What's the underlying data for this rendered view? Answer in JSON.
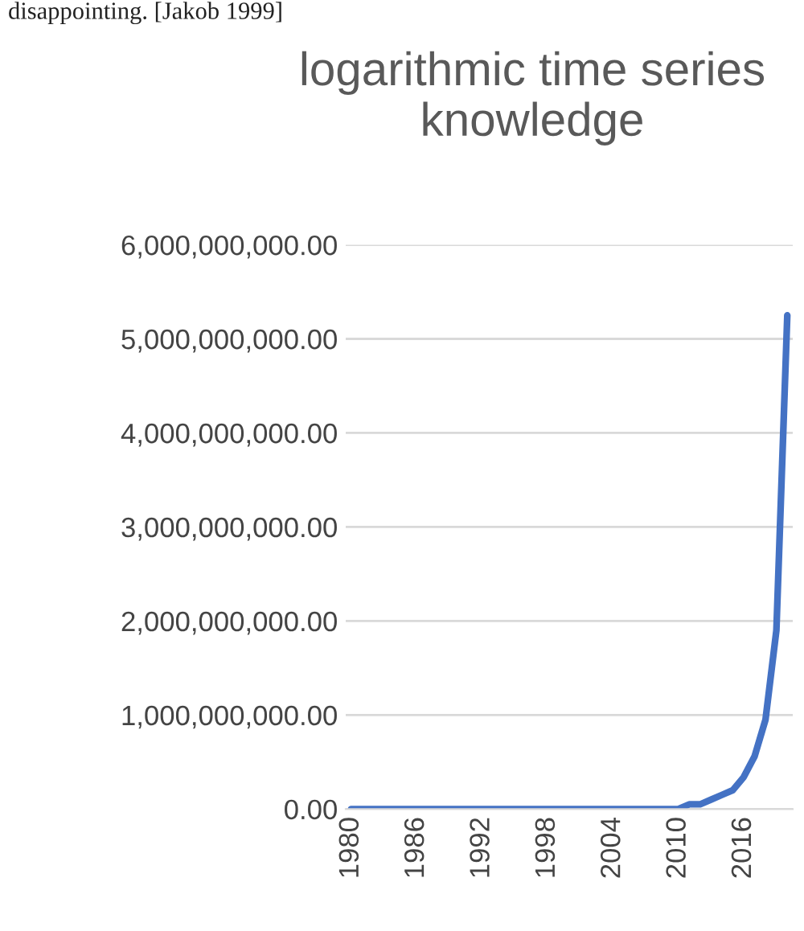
{
  "chart_data": {
    "type": "line",
    "title": "logarithmic time series knowledge",
    "annotations": [
      "disappointing. [Jakob 1999]"
    ],
    "categories": [
      "1980",
      null,
      null,
      null,
      null,
      null,
      "1986",
      null,
      null,
      null,
      null,
      null,
      "1992",
      null,
      null,
      null,
      null,
      null,
      "1998",
      null,
      null,
      null,
      null,
      null,
      "2004",
      null,
      null,
      null,
      null,
      null,
      "2010",
      null,
      null,
      null,
      null,
      null,
      "2016",
      null,
      null,
      null,
      null
    ],
    "series": [
      {
        "color": "#4472c4",
        "values": [
          0,
          0,
          0,
          0,
          0,
          0,
          0,
          0,
          0,
          0,
          0,
          0,
          0,
          0,
          0,
          0,
          0,
          0,
          0,
          0,
          0,
          0,
          0,
          0,
          0,
          0,
          0,
          0,
          0,
          0,
          0,
          50000000,
          50000000,
          100000000,
          150000000,
          200000000,
          340000000,
          560000000,
          950000000,
          1900000000,
          5250000000
        ]
      }
    ],
    "ylim": [
      0,
      6000000000
    ],
    "yticks": [
      {
        "value": 0,
        "label": "0.00"
      },
      {
        "value": 1000000000,
        "label": "1,000,000,000.00"
      },
      {
        "value": 2000000000,
        "label": "2,000,000,000.00"
      },
      {
        "value": 3000000000,
        "label": "3,000,000,000.00"
      },
      {
        "value": 4000000000,
        "label": "4,000,000,000.00"
      },
      {
        "value": 5000000000,
        "label": "5,000,000,000.00"
      },
      {
        "value": 6000000000,
        "label": "6,000,000,000.00"
      }
    ],
    "grid": "y",
    "marker": "none",
    "line_style": "solid"
  }
}
